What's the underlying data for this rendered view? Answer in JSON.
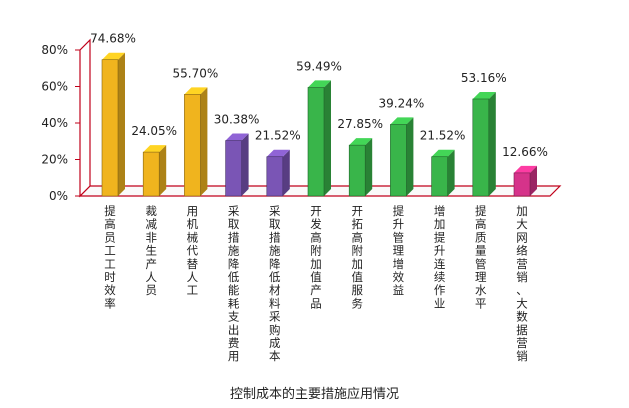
{
  "chart_data": {
    "type": "bar",
    "title": "控制成本的主要措施应用情况",
    "categories": [
      "提高员工工时效率",
      "裁减非生产人员",
      "用机械代替人工",
      "采取措施降低能耗支出费用",
      "采取措施降低材料采购成本",
      "开发高附加值产品",
      "开拓高附加值服务",
      "提升管理增效益",
      "增加提升连续作业",
      "提高质量管理水平",
      "加大网络营销、大数据营销"
    ],
    "values": [
      74.68,
      24.05,
      55.7,
      30.38,
      21.52,
      59.49,
      27.85,
      39.24,
      21.52,
      53.16,
      12.66
    ],
    "value_labels": [
      "74.68%",
      "24.05%",
      "55.70%",
      "30.38%",
      "21.52%",
      "59.49%",
      "27.85%",
      "39.24%",
      "21.52%",
      "53.16%",
      "12.66%"
    ],
    "bar_colors": [
      "#f0b41e",
      "#f0b41e",
      "#f0b41e",
      "#7a55b5",
      "#7a55b5",
      "#39b54a",
      "#39b54a",
      "#39b54a",
      "#39b54a",
      "#39b54a",
      "#d6338a"
    ],
    "ylim": [
      0,
      80
    ],
    "yticks": [
      "0%",
      "20%",
      "40%",
      "60%",
      "80%"
    ],
    "ytick_values": [
      0,
      20,
      40,
      60,
      80
    ],
    "grid": false,
    "axis_color": "#c0001a"
  }
}
